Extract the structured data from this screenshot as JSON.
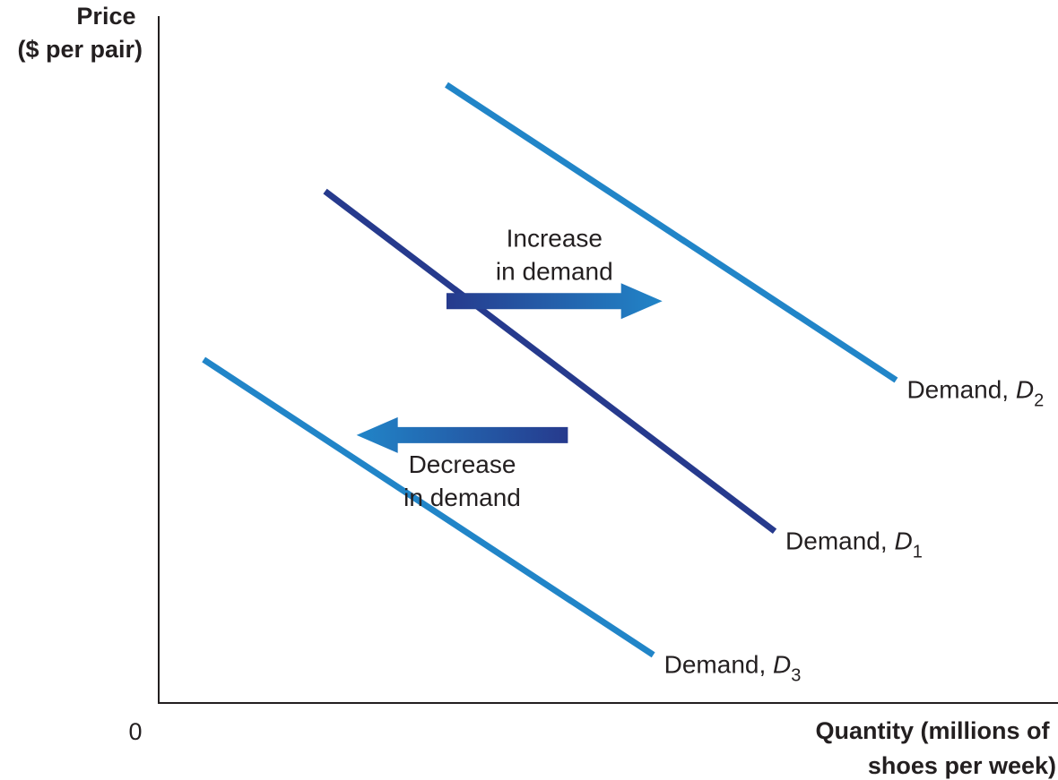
{
  "chart_data": {
    "type": "line",
    "title": "",
    "ylabel": [
      "Price",
      "($ per pair)"
    ],
    "xlabel": [
      "Quantity (millions of",
      "shoes per week)"
    ],
    "origin_label": "0",
    "grid": false,
    "series": [
      {
        "name_prefix": "Demand, ",
        "name_italic": "D",
        "name_sub": "2",
        "color": "#2185c8",
        "points": [
          [
            3.2,
            9.0
          ],
          [
            8.2,
            4.7
          ]
        ]
      },
      {
        "name_prefix": "Demand, ",
        "name_italic": "D",
        "name_sub": "1",
        "color": "#263a8d",
        "points": [
          [
            1.85,
            7.45
          ],
          [
            6.85,
            2.5
          ]
        ]
      },
      {
        "name_prefix": "Demand, ",
        "name_italic": "D",
        "name_sub": "3",
        "color": "#2185c8",
        "points": [
          [
            0.5,
            5.0
          ],
          [
            5.5,
            0.7
          ]
        ]
      }
    ],
    "annotations": [
      {
        "lines": [
          "Increase",
          "in demand"
        ],
        "direction": "right",
        "from": [
          3.2,
          5.85
        ],
        "to": [
          5.6,
          5.85
        ],
        "color_start": "#263a8d",
        "color_end": "#2185c8"
      },
      {
        "lines": [
          "Decrease",
          "in demand"
        ],
        "direction": "left",
        "from": [
          4.55,
          3.9
        ],
        "to": [
          2.2,
          3.9
        ],
        "color_start": "#263a8d",
        "color_end": "#2185c8"
      }
    ],
    "xlim": [
      0,
      10
    ],
    "ylim": [
      0,
      10
    ]
  }
}
